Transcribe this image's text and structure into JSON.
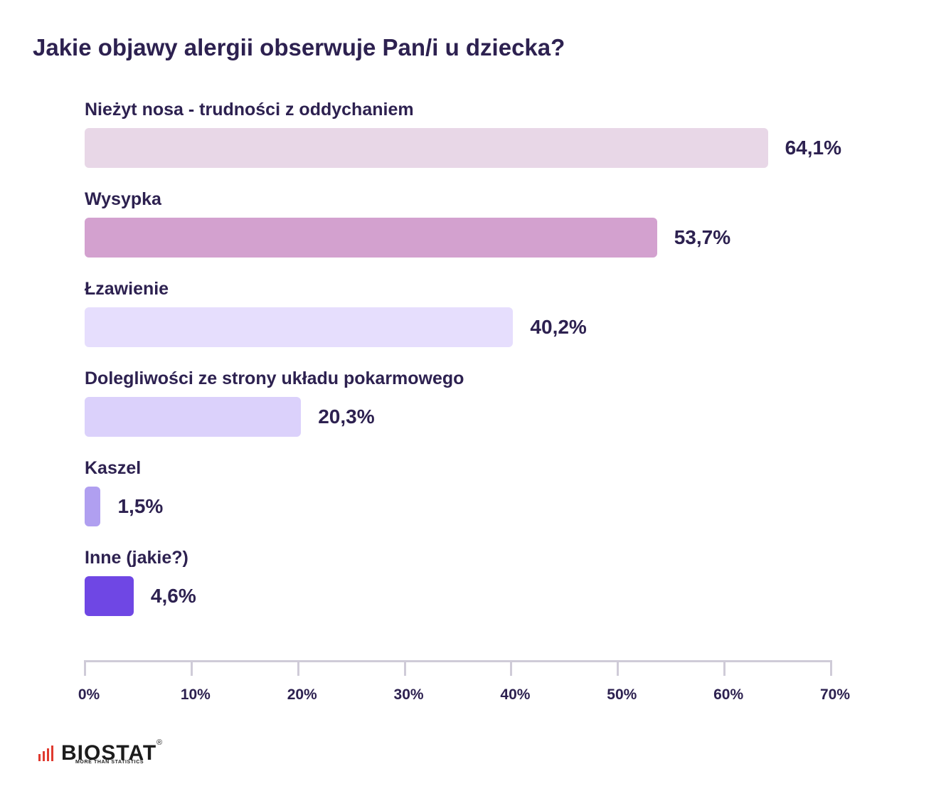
{
  "title": "Jakie objawy alergii obserwuje Pan/i u dziecka?",
  "chart_data": {
    "type": "bar",
    "orientation": "horizontal",
    "title": "Jakie objawy alergii obserwuje Pan/i u dziecka?",
    "categories": [
      "Nieżyt nosa - trudności z oddychaniem",
      "Wysypka",
      "Łzawienie",
      "Dolegliwości ze strony układu pokarmowego",
      "Kaszel",
      "Inne (jakie?)"
    ],
    "values": [
      64.1,
      53.7,
      40.2,
      20.3,
      1.5,
      4.6
    ],
    "value_labels": [
      "64,1%",
      "53,7%",
      "40,2%",
      "20,3%",
      "1,5%",
      "4,6%"
    ],
    "bar_colors": [
      "#e8d7e7",
      "#d3a1cf",
      "#e6defd",
      "#dbd1fb",
      "#b09ff0",
      "#6f47e4"
    ],
    "xlim": [
      0,
      70
    ],
    "xticks": [
      0,
      10,
      20,
      30,
      40,
      50,
      60,
      70
    ],
    "xtick_labels": [
      "0%",
      "10%",
      "20%",
      "30%",
      "40%",
      "50%",
      "60%",
      "70%"
    ],
    "xlabel": "",
    "ylabel": "",
    "grid": false,
    "legend": "none"
  },
  "logo": {
    "name": "BIOSTAT",
    "registered": "®",
    "tagline": "MORE THAN STATISTICS"
  }
}
